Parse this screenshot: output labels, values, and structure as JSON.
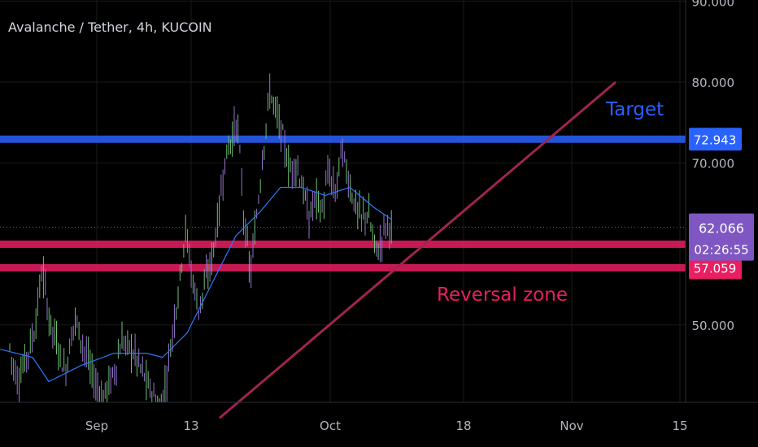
{
  "chart_data": {
    "type": "candlestick",
    "title": "Avalanche / Tether, 4h, KUCOIN",
    "x_tick_labels": [
      "Sep",
      "13",
      "Oct",
      "18",
      "Nov",
      "15"
    ],
    "y_tick_labels": [
      "90.000",
      "80.000",
      "70.000",
      "50.000"
    ],
    "y_range": [
      38.5,
      90.0
    ],
    "grid": true,
    "price_series": [
      {
        "t": 0,
        "p": 44
      },
      {
        "t": 8,
        "p": 50
      },
      {
        "t": 14,
        "p": 46
      },
      {
        "t": 22,
        "p": 43
      },
      {
        "t": 32,
        "p": 46
      },
      {
        "t": 42,
        "p": 49
      },
      {
        "t": 52,
        "p": 57
      },
      {
        "t": 60,
        "p": 51
      },
      {
        "t": 72,
        "p": 47
      },
      {
        "t": 80,
        "p": 44
      },
      {
        "t": 92,
        "p": 51
      },
      {
        "t": 104,
        "p": 47
      },
      {
        "t": 116,
        "p": 43
      },
      {
        "t": 126,
        "p": 41
      },
      {
        "t": 140,
        "p": 44
      },
      {
        "t": 150,
        "p": 48
      },
      {
        "t": 162,
        "p": 47
      },
      {
        "t": 172,
        "p": 45
      },
      {
        "t": 184,
        "p": 42
      },
      {
        "t": 196,
        "p": 39.5
      },
      {
        "t": 204,
        "p": 43
      },
      {
        "t": 212,
        "p": 49
      },
      {
        "t": 220,
        "p": 55
      },
      {
        "t": 228,
        "p": 62
      },
      {
        "t": 236,
        "p": 56
      },
      {
        "t": 244,
        "p": 52
      },
      {
        "t": 252,
        "p": 55
      },
      {
        "t": 260,
        "p": 58
      },
      {
        "t": 268,
        "p": 63
      },
      {
        "t": 276,
        "p": 70
      },
      {
        "t": 284,
        "p": 73
      },
      {
        "t": 292,
        "p": 75
      },
      {
        "t": 300,
        "p": 63
      },
      {
        "t": 308,
        "p": 56
      },
      {
        "t": 316,
        "p": 64
      },
      {
        "t": 324,
        "p": 72
      },
      {
        "t": 332,
        "p": 79
      },
      {
        "t": 340,
        "p": 76
      },
      {
        "t": 348,
        "p": 73
      },
      {
        "t": 356,
        "p": 69
      },
      {
        "t": 364,
        "p": 70
      },
      {
        "t": 372,
        "p": 67
      },
      {
        "t": 380,
        "p": 63
      },
      {
        "t": 388,
        "p": 66
      },
      {
        "t": 396,
        "p": 64
      },
      {
        "t": 404,
        "p": 69
      },
      {
        "t": 412,
        "p": 66
      },
      {
        "t": 420,
        "p": 72
      },
      {
        "t": 428,
        "p": 68
      },
      {
        "t": 436,
        "p": 65
      },
      {
        "t": 444,
        "p": 63
      },
      {
        "t": 452,
        "p": 64
      },
      {
        "t": 460,
        "p": 60
      },
      {
        "t": 466,
        "p": 59
      },
      {
        "t": 472,
        "p": 62
      },
      {
        "t": 478,
        "p": 62.5
      },
      {
        "t": 482,
        "p": 62.066
      }
    ],
    "moving_average": [
      {
        "t": 0,
        "p": 47
      },
      {
        "t": 40,
        "p": 46
      },
      {
        "t": 60,
        "p": 43
      },
      {
        "t": 100,
        "p": 45
      },
      {
        "t": 140,
        "p": 46.5
      },
      {
        "t": 180,
        "p": 46.5
      },
      {
        "t": 200,
        "p": 46
      },
      {
        "t": 230,
        "p": 49
      },
      {
        "t": 260,
        "p": 55
      },
      {
        "t": 290,
        "p": 61
      },
      {
        "t": 320,
        "p": 64
      },
      {
        "t": 345,
        "p": 67
      },
      {
        "t": 370,
        "p": 67
      },
      {
        "t": 400,
        "p": 66
      },
      {
        "t": 430,
        "p": 67
      },
      {
        "t": 460,
        "p": 64.5
      },
      {
        "t": 482,
        "p": 63
      }
    ],
    "horizontal_levels": [
      {
        "value": 72.943,
        "label": "72.943",
        "color": "#2962ff"
      },
      {
        "value": 59.97,
        "label": "59.970",
        "color": "#e91e63"
      },
      {
        "value": 57.059,
        "label": "57.059",
        "color": "#e91e63"
      }
    ],
    "current_price": {
      "value": 62.066,
      "label": "62.066",
      "countdown": "02:26:55",
      "color": "#7e57c2"
    },
    "trendline": {
      "start": {
        "t": 270,
        "p": 38.5
      },
      "end": {
        "t": 757,
        "p": 80
      },
      "color": "#a0244f"
    },
    "annotations": [
      {
        "text": "Target",
        "color": "#2962ff"
      },
      {
        "text": "Reversal zone",
        "color": "#e91e63"
      }
    ]
  },
  "colors": {
    "background": "#000000",
    "grid": "#1a1a1a",
    "text": "#b2b5be",
    "candle_up": "#6fbf73",
    "candle_down": "#9575cd",
    "ma_line": "#2979ff"
  }
}
